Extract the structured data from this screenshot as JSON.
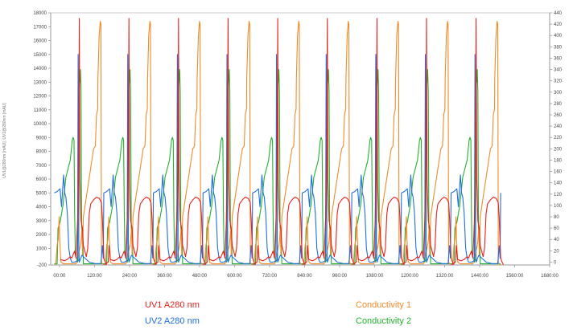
{
  "chart_data": {
    "type": "line",
    "xlabel": "",
    "ylabel": "UV1@280nm [mAU]; UV2@280nm [mAU]",
    "y2label": "",
    "x_range": [
      -30,
      1680
    ],
    "y_range": [
      -200,
      18000
    ],
    "y2_range": [
      -5,
      440
    ],
    "x_ticks": [
      "00:00",
      "120:00",
      "240:00",
      "360:00",
      "480:00",
      "600:00",
      "720:00",
      "840:00",
      "960:00",
      "1080:00",
      "1200:00",
      "1320:00",
      "1440:00",
      "1560:00",
      "1680:00"
    ],
    "x_tick_values": [
      0,
      120,
      240,
      360,
      480,
      600,
      720,
      840,
      960,
      1080,
      1200,
      1320,
      1440,
      1560,
      1680
    ],
    "y_ticks": [
      -200,
      1000,
      2000,
      3000,
      4000,
      5000,
      6000,
      7000,
      8000,
      9000,
      10000,
      11000,
      12000,
      13000,
      14000,
      15000,
      16000,
      17000,
      18000
    ],
    "y2_ticks": [
      0,
      20,
      40,
      60,
      80,
      100,
      120,
      140,
      160,
      180,
      200,
      220,
      240,
      260,
      280,
      300,
      320,
      340,
      360,
      380,
      400,
      420,
      440
    ],
    "grid": false,
    "cycles": {
      "period": 170,
      "starts": [
        -18,
        152,
        322,
        492,
        662,
        832,
        1002,
        1172,
        1342
      ]
    },
    "series": [
      {
        "name": "UV1 A280 nm",
        "color": "#e8211b",
        "axis": "left",
        "cycle_points": [
          [
            0,
            -200
          ],
          [
            15,
            0
          ],
          [
            18,
            1200
          ],
          [
            22,
            200
          ],
          [
            35,
            100
          ],
          [
            45,
            200
          ],
          [
            55,
            400
          ],
          [
            60,
            300
          ],
          [
            70,
            800
          ],
          [
            75,
            300
          ],
          [
            80,
            3000
          ],
          [
            84,
            7200
          ],
          [
            86,
            17600
          ],
          [
            88,
            6000
          ],
          [
            92,
            3000
          ],
          [
            97,
            2400
          ],
          [
            100,
            1200
          ],
          [
            110,
            400
          ],
          [
            115,
            1000
          ],
          [
            120,
            3500
          ],
          [
            125,
            4200
          ],
          [
            135,
            4500
          ],
          [
            145,
            4700
          ],
          [
            155,
            4600
          ],
          [
            162,
            4300
          ],
          [
            165,
            3200
          ],
          [
            170,
            300
          ],
          [
            175,
            0
          ],
          [
            180,
            -200
          ],
          [
            185,
            -200
          ]
        ],
        "trim_first": 3
      },
      {
        "name": "UV2 A280 nm",
        "color": "#1f6fe0",
        "axis": "left",
        "cycle_points": [
          [
            0,
            5000
          ],
          [
            10,
            5100
          ],
          [
            20,
            5300
          ],
          [
            25,
            4000
          ],
          [
            32,
            6300
          ],
          [
            36,
            5000
          ],
          [
            40,
            4700
          ],
          [
            45,
            3500
          ],
          [
            50,
            1000
          ],
          [
            55,
            300
          ],
          [
            60,
            0
          ],
          [
            70,
            0
          ],
          [
            80,
            100
          ],
          [
            82,
            15000
          ],
          [
            84,
            1500
          ],
          [
            86,
            0
          ],
          [
            95,
            500
          ],
          [
            105,
            300
          ],
          [
            120,
            0
          ],
          [
            140,
            -100
          ],
          [
            160,
            -100
          ],
          [
            165,
            1200
          ],
          [
            168,
            300
          ],
          [
            170,
            5000
          ]
        ],
        "trim_first": 0
      },
      {
        "name": "Conductivity 1",
        "color": "#f08b2a",
        "axis": "right",
        "cycle_points": [
          [
            0,
            -5
          ],
          [
            5,
            -5
          ],
          [
            8,
            15
          ],
          [
            10,
            30
          ],
          [
            14,
            40
          ],
          [
            17,
            80
          ],
          [
            19,
            40
          ],
          [
            23,
            0
          ],
          [
            32,
            -3
          ],
          [
            55,
            -3
          ],
          [
            75,
            -3
          ],
          [
            90,
            30
          ],
          [
            92,
            38
          ],
          [
            95,
            60
          ],
          [
            97,
            12
          ],
          [
            100,
            80
          ],
          [
            135,
            200
          ],
          [
            141,
            205
          ],
          [
            145,
            260
          ],
          [
            149,
            270
          ],
          [
            150,
            325
          ],
          [
            154,
            400
          ],
          [
            158,
            425
          ],
          [
            160,
            420
          ],
          [
            162,
            0
          ],
          [
            165,
            -3
          ],
          [
            170,
            -5
          ]
        ],
        "trim_first": 0
      },
      {
        "name": "Conductivity 2",
        "color": "#23b12d",
        "axis": "right",
        "cycle_points": [
          [
            0,
            -3
          ],
          [
            10,
            -3
          ],
          [
            13,
            60
          ],
          [
            20,
            70
          ],
          [
            30,
            100
          ],
          [
            40,
            150
          ],
          [
            55,
            180
          ],
          [
            62,
            215
          ],
          [
            65,
            220
          ],
          [
            68,
            215
          ],
          [
            70,
            90
          ],
          [
            72,
            20
          ],
          [
            75,
            10
          ],
          [
            80,
            0
          ],
          [
            84,
            5
          ],
          [
            86,
            310
          ],
          [
            88,
            320
          ],
          [
            90,
            340
          ],
          [
            92,
            300
          ],
          [
            94,
            60
          ],
          [
            96,
            50
          ],
          [
            98,
            40
          ],
          [
            100,
            -3
          ],
          [
            130,
            -3
          ],
          [
            150,
            -3
          ],
          [
            160,
            -3
          ],
          [
            170,
            -3
          ]
        ],
        "trim_first": 0
      }
    ]
  },
  "legend": [
    {
      "label": "UV1 A280 nm",
      "color": "#e8211b"
    },
    {
      "label": "Conductivity 1",
      "color": "#f08b2a"
    },
    {
      "label": "UV2 A280 nm",
      "color": "#1f6fe0"
    },
    {
      "label": "Conductivity 2",
      "color": "#23b12d"
    }
  ]
}
